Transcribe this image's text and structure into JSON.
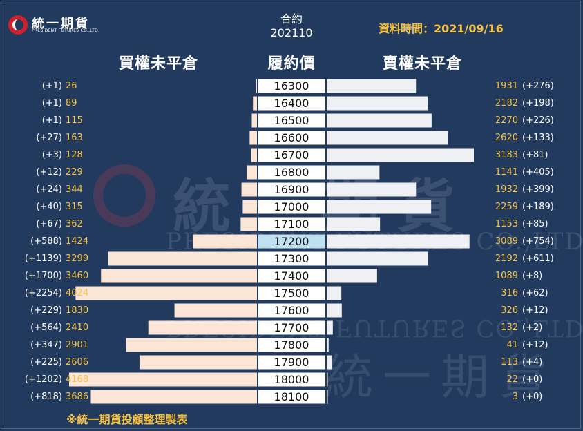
{
  "brand": {
    "name": "統一期貨",
    "english": "PRESIDENT FUTURES CO.,LTD."
  },
  "header": {
    "contract_label": "合約",
    "contract_value": "202110",
    "date": "資料時間：2021/09/16",
    "call_title": "買權未平倉",
    "strike_title": "履約價",
    "put_title": "賣權未平倉"
  },
  "footer": "※統一期貨投顧整理製表",
  "colors": {
    "background": "#223a5e",
    "call_bar": "#fbe5d6",
    "put_bar": "#eef0f3",
    "value_text": "#f5c242",
    "change_text": "#ffffff",
    "strike_bg": "#ffffff",
    "strike_highlight": "#bfe0ee"
  },
  "chart_data": {
    "type": "bar",
    "orientation": "horizontal-butterfly",
    "title": "",
    "highlight_strike": "17200",
    "strikes": [
      "16300",
      "16400",
      "16500",
      "16600",
      "16700",
      "16800",
      "16900",
      "17000",
      "17100",
      "17200",
      "17300",
      "17400",
      "17500",
      "17600",
      "17700",
      "17800",
      "17900",
      "18000",
      "18100"
    ],
    "series": [
      {
        "name": "買權未平倉",
        "values": [
          26,
          89,
          115,
          163,
          128,
          229,
          344,
          315,
          362,
          1424,
          3299,
          3460,
          4024,
          1830,
          2410,
          2901,
          2606,
          4168,
          3686
        ],
        "changes": [
          "(+1)",
          "(+1)",
          "(+1)",
          "(+27)",
          "(+3)",
          "(+12)",
          "(+24)",
          "(+40)",
          "(+67)",
          "(+588)",
          "(+1139)",
          "(+1700)",
          "(+2254)",
          "(+229)",
          "(+564)",
          "(+347)",
          "(+225)",
          "(+1202)",
          "(+818)"
        ]
      },
      {
        "name": "賣權未平倉",
        "values": [
          1931,
          2182,
          2270,
          2620,
          3183,
          1141,
          1932,
          2259,
          1153,
          3089,
          2192,
          1089,
          316,
          326,
          132,
          41,
          113,
          22,
          3
        ],
        "changes": [
          "(+276)",
          "(+198)",
          "(+226)",
          "(+133)",
          "(+81)",
          "(+405)",
          "(+399)",
          "(+189)",
          "(+85)",
          "(+754)",
          "(+611)",
          "(+8)",
          "(+62)",
          "(+12)",
          "(+2)",
          "(+12)",
          "(+4)",
          "(+0)",
          "(+0)"
        ]
      }
    ]
  }
}
